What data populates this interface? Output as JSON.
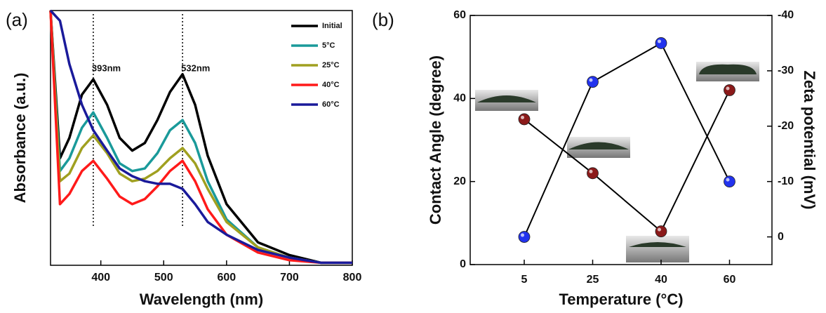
{
  "chart_data": [
    {
      "type": "line",
      "panel_label": "(a)",
      "x_label": "Wavelength (nm)",
      "y_label": "Absorbance (a.u.)",
      "x": [
        320,
        335,
        350,
        370,
        388,
        410,
        430,
        450,
        470,
        490,
        510,
        530,
        550,
        570,
        600,
        650,
        700,
        750,
        800
      ],
      "xlim": [
        320,
        800
      ],
      "xticks": [
        400,
        500,
        600,
        700,
        800
      ],
      "ylim": [
        0,
        1
      ],
      "legend": "upper right",
      "series": [
        {
          "name": "Initial",
          "color": "#000000",
          "values": [
            1.0,
            0.42,
            0.5,
            0.67,
            0.73,
            0.63,
            0.5,
            0.45,
            0.48,
            0.57,
            0.68,
            0.75,
            0.63,
            0.43,
            0.24,
            0.09,
            0.04,
            0.01,
            0.01
          ]
        },
        {
          "name": "5°C",
          "color": "#1a9a9a",
          "values": [
            1.0,
            0.37,
            0.42,
            0.54,
            0.6,
            0.5,
            0.4,
            0.37,
            0.38,
            0.44,
            0.53,
            0.57,
            0.48,
            0.33,
            0.18,
            0.07,
            0.03,
            0.01,
            0.01
          ]
        },
        {
          "name": "25°C",
          "color": "#a0a020",
          "values": [
            1.0,
            0.33,
            0.36,
            0.46,
            0.51,
            0.44,
            0.36,
            0.33,
            0.34,
            0.37,
            0.42,
            0.46,
            0.4,
            0.3,
            0.17,
            0.07,
            0.03,
            0.01,
            0.01
          ]
        },
        {
          "name": "40°C",
          "color": "#ff1a1a",
          "values": [
            1.0,
            0.24,
            0.28,
            0.37,
            0.41,
            0.34,
            0.27,
            0.24,
            0.26,
            0.31,
            0.37,
            0.41,
            0.33,
            0.22,
            0.12,
            0.05,
            0.02,
            0.01,
            0.01
          ]
        },
        {
          "name": "60°C",
          "color": "#1a1a9a",
          "values": [
            1.0,
            0.96,
            0.79,
            0.63,
            0.53,
            0.45,
            0.38,
            0.35,
            0.33,
            0.32,
            0.32,
            0.3,
            0.24,
            0.17,
            0.12,
            0.06,
            0.03,
            0.01,
            0.01
          ]
        }
      ],
      "peak_lines": [
        {
          "x": 388,
          "label": "393nm"
        },
        {
          "x": 530,
          "label": "532nm"
        }
      ]
    },
    {
      "type": "line",
      "panel_label": "(b)",
      "x_label": "Temperature (°C)",
      "y_label": "Contact Angle (degree)",
      "y2_label": "Zeta potential (mV)",
      "y_label_color": "#7a1010",
      "y2_label_color": "#1a1a8a",
      "categories": [
        "5",
        "25",
        "40",
        "60"
      ],
      "markers": true,
      "ylim": [
        0,
        60
      ],
      "yticks": [
        0,
        20,
        40,
        60
      ],
      "y2lim": [
        5,
        -40
      ],
      "y2ticks": [
        -40,
        -30,
        -20,
        -10,
        0
      ],
      "series": [
        {
          "color": "#8b1a1a",
          "values": [
            35,
            22,
            8,
            42
          ]
        },
        {
          "color": "#2233ee",
          "axis": "y2",
          "values": [
            0,
            -28,
            -35,
            -10
          ]
        }
      ]
    }
  ]
}
